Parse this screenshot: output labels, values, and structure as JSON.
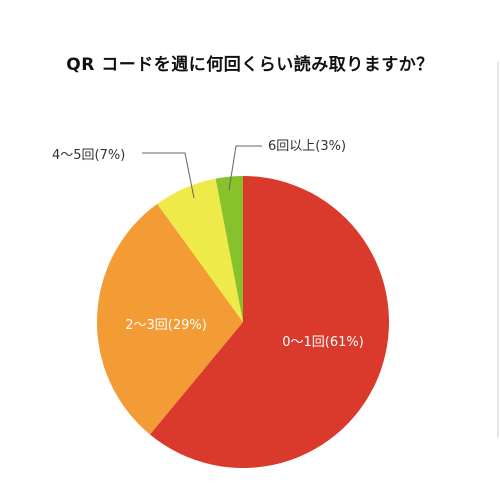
{
  "chart_data": {
    "type": "pie",
    "title": "QR コードを週に何回くらい読み取りますか？",
    "categories": [
      "0～1回",
      "2～3回",
      "4～5回",
      "6回以上"
    ],
    "values": [
      61,
      29,
      7,
      3
    ],
    "labels": [
      "0～1回(61%)",
      "2～3回(29%)",
      "4～5回(7%)",
      "6回以上(3%)"
    ],
    "colors": [
      "#d93a2b",
      "#f39b34",
      "#eeea4a",
      "#87c22c"
    ],
    "label_color_inside": "#ffffff",
    "label_color_outside": "#333333"
  }
}
